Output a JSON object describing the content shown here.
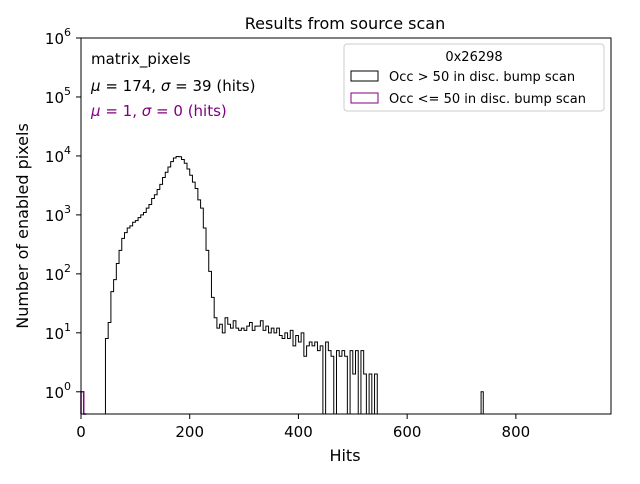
{
  "chart_data": {
    "type": "histogram-step",
    "title": "Results from source scan",
    "xlabel": "Hits",
    "ylabel": "Number of enabled pixels",
    "x_ticks": [
      0,
      200,
      400,
      600,
      800
    ],
    "x_tick_labels": [
      "0",
      "200",
      "400",
      "600",
      "800"
    ],
    "xlim": [
      0,
      975
    ],
    "y_scale": "log",
    "ylim": [
      0.42,
      1000000
    ],
    "y_ticks": [
      1,
      10,
      100,
      1000,
      10000,
      100000,
      1000000
    ],
    "y_tick_bases": [
      "10",
      "10",
      "10",
      "10",
      "10",
      "10",
      "10"
    ],
    "y_tick_exps": [
      "0",
      "1",
      "2",
      "3",
      "4",
      "5",
      "6"
    ],
    "annotations": {
      "name": "matrix_pixels",
      "mu1": "174",
      "sigma1": "39",
      "units1": "(hits)",
      "mu2": "1",
      "sigma2": "0",
      "units2": "(hits)",
      "color2": "#800080"
    },
    "legend": {
      "title": "0x26298",
      "entries": [
        {
          "label": "Occ > 50 in disc. bump scan",
          "color": "#000000"
        },
        {
          "label": "Occ <= 50 in disc. bump scan",
          "color": "#800080"
        }
      ]
    },
    "series": [
      {
        "name": "Occ > 50 in disc. bump scan",
        "color": "#000000",
        "bin_width": 5,
        "points": [
          [
            40,
            0.42
          ],
          [
            45,
            8
          ],
          [
            50,
            15
          ],
          [
            55,
            50
          ],
          [
            60,
            80
          ],
          [
            65,
            150
          ],
          [
            70,
            250
          ],
          [
            75,
            400
          ],
          [
            80,
            500
          ],
          [
            85,
            600
          ],
          [
            90,
            650
          ],
          [
            95,
            750
          ],
          [
            100,
            800
          ],
          [
            105,
            900
          ],
          [
            110,
            1000
          ],
          [
            115,
            1100
          ],
          [
            120,
            1300
          ],
          [
            125,
            1500
          ],
          [
            130,
            1900
          ],
          [
            135,
            2200
          ],
          [
            140,
            2700
          ],
          [
            145,
            3300
          ],
          [
            150,
            4300
          ],
          [
            155,
            5300
          ],
          [
            160,
            6500
          ],
          [
            165,
            8000
          ],
          [
            170,
            9200
          ],
          [
            175,
            9800
          ],
          [
            180,
            9700
          ],
          [
            185,
            8700
          ],
          [
            190,
            7500
          ],
          [
            195,
            6000
          ],
          [
            200,
            4700
          ],
          [
            205,
            3600
          ],
          [
            210,
            2800
          ],
          [
            215,
            1800
          ],
          [
            220,
            1300
          ],
          [
            225,
            600
          ],
          [
            230,
            250
          ],
          [
            235,
            110
          ],
          [
            240,
            40
          ],
          [
            245,
            18
          ],
          [
            250,
            12
          ],
          [
            255,
            14
          ],
          [
            260,
            10
          ],
          [
            265,
            18
          ],
          [
            270,
            14
          ],
          [
            275,
            12
          ],
          [
            280,
            16
          ],
          [
            285,
            12
          ],
          [
            290,
            11
          ],
          [
            295,
            12
          ],
          [
            300,
            11
          ],
          [
            305,
            13
          ],
          [
            310,
            15
          ],
          [
            315,
            11
          ],
          [
            320,
            13
          ],
          [
            325,
            13
          ],
          [
            330,
            16
          ],
          [
            335,
            11
          ],
          [
            340,
            13
          ],
          [
            345,
            10
          ],
          [
            350,
            12
          ],
          [
            355,
            10
          ],
          [
            360,
            12
          ],
          [
            365,
            9
          ],
          [
            370,
            8
          ],
          [
            375,
            10
          ],
          [
            380,
            8
          ],
          [
            385,
            11
          ],
          [
            390,
            6
          ],
          [
            395,
            9
          ],
          [
            400,
            7
          ],
          [
            405,
            10
          ],
          [
            410,
            4
          ],
          [
            415,
            6
          ],
          [
            420,
            7
          ],
          [
            425,
            6
          ],
          [
            430,
            7
          ],
          [
            435,
            5
          ],
          [
            440,
            6
          ],
          [
            445,
            0.42
          ],
          [
            450,
            7
          ],
          [
            455,
            5
          ],
          [
            460,
            4
          ],
          [
            465,
            0.42
          ],
          [
            470,
            5
          ],
          [
            475,
            4
          ],
          [
            480,
            5
          ],
          [
            485,
            4
          ],
          [
            490,
            0.42
          ],
          [
            495,
            5
          ],
          [
            500,
            2
          ],
          [
            505,
            5
          ],
          [
            510,
            0.42
          ],
          [
            515,
            5
          ],
          [
            520,
            2
          ],
          [
            525,
            0.42
          ],
          [
            530,
            2
          ],
          [
            535,
            0.42
          ],
          [
            540,
            2
          ],
          [
            545,
            0.42
          ],
          [
            550,
            0.42
          ],
          [
            625,
            0.42
          ],
          [
            736,
            1
          ],
          [
            740,
            0.42
          ]
        ]
      },
      {
        "name": "Occ <= 50 in disc. bump scan",
        "color": "#800080",
        "bin_width": 5,
        "points": [
          [
            0,
            1
          ],
          [
            5,
            0.42
          ]
        ]
      }
    ]
  }
}
